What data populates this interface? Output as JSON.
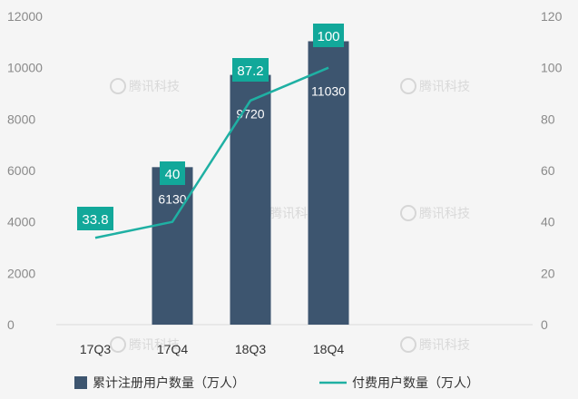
{
  "colors": {
    "bar": "#3d556f",
    "line": "#1fb0a3",
    "label_box": "#12a89a",
    "grid": "#dcdcdc",
    "watermark": "#d6d6d6"
  },
  "watermark": {
    "text": "腾讯科技",
    "icon": "tencent-tech-logo-icon"
  },
  "chart_data": {
    "type": "bar",
    "categories": [
      "17Q3",
      "17Q4",
      "18Q3",
      "18Q4"
    ],
    "series": [
      {
        "name": "累计注册用户数量（万人）",
        "type": "bar",
        "axis": "left",
        "values": [
          null,
          6130,
          9720,
          11030
        ],
        "labels": [
          "",
          "6130",
          "9720",
          "11030"
        ]
      },
      {
        "name": "付费用户数量（万人）",
        "type": "line",
        "axis": "right",
        "values": [
          33.8,
          40,
          87.2,
          100
        ],
        "labels": [
          "33.8",
          "40",
          "87.2",
          "100"
        ]
      }
    ],
    "y_left": {
      "ticks": [
        "0",
        "2000",
        "4000",
        "6000",
        "8000",
        "10000",
        "12000"
      ],
      "range": [
        0,
        12000
      ]
    },
    "y_right": {
      "ticks": [
        "0",
        "20",
        "40",
        "60",
        "80",
        "100",
        "120"
      ],
      "range": [
        0,
        120
      ]
    },
    "grid": false,
    "legend": "bottom"
  }
}
